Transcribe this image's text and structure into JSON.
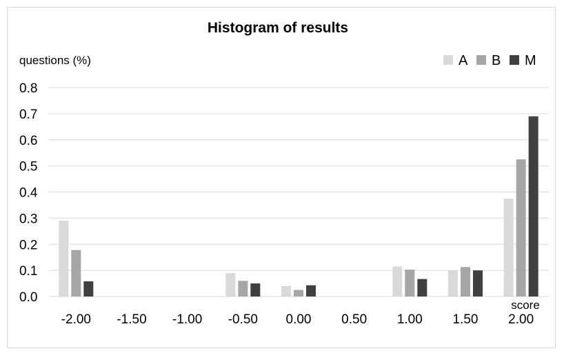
{
  "chart_data": {
    "type": "bar",
    "title": "Histogram of results",
    "xlabel": "score",
    "ylabel": "questions (%)",
    "categories": [
      "-2.00",
      "-1.50",
      "-1.00",
      "-0.50",
      "0.00",
      "0.50",
      "1.00",
      "1.50",
      "2.00"
    ],
    "yticks": [
      "0.0",
      "0.1",
      "0.2",
      "0.3",
      "0.4",
      "0.5",
      "0.6",
      "0.7",
      "0.8"
    ],
    "ylim": [
      0,
      0.8
    ],
    "grid": true,
    "legend_position": "top-right",
    "series": [
      {
        "name": "A",
        "color": "#d9d9d9",
        "values": [
          0.29,
          0,
          0,
          0.09,
          0.04,
          0,
          0.115,
          0.1,
          0.375
        ]
      },
      {
        "name": "B",
        "color": "#a6a6a6",
        "values": [
          0.178,
          0,
          0,
          0.06,
          0.025,
          0,
          0.103,
          0.113,
          0.525
        ]
      },
      {
        "name": "M",
        "color": "#404040",
        "values": [
          0.058,
          0,
          0,
          0.05,
          0.043,
          0,
          0.067,
          0.1,
          0.69
        ]
      }
    ]
  }
}
